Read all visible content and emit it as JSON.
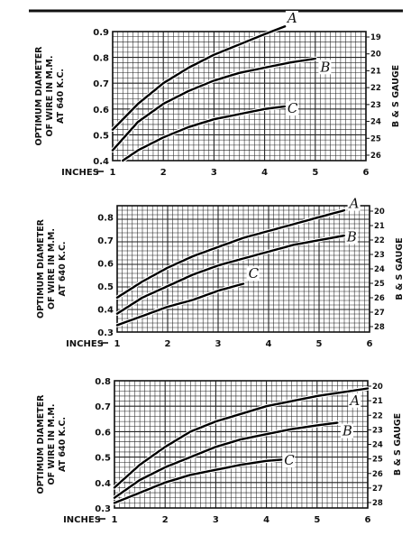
{
  "chart_data": [
    {
      "type": "line",
      "ylabel_lines": [
        "OPTIMUM DIAMETER",
        "OF WIRE IN M.M.",
        "AT 640 K.C."
      ],
      "right_label": "B & S GAUGE",
      "x_axis_label": "INCHES",
      "xlim": [
        1,
        6
      ],
      "ylim": [
        0.4,
        0.9
      ],
      "x_ticks": [
        {
          "value": 1,
          "label": "1"
        },
        {
          "value": 2,
          "label": "2"
        },
        {
          "value": 3,
          "label": "3"
        },
        {
          "value": 4,
          "label": "4"
        },
        {
          "value": 5,
          "label": "5"
        },
        {
          "value": 6,
          "label": "6"
        }
      ],
      "y_ticks": [
        {
          "value": 0.4,
          "label": "0.4"
        },
        {
          "value": 0.5,
          "label": "0.5"
        },
        {
          "value": 0.6,
          "label": "0.6"
        },
        {
          "value": 0.7,
          "label": "0.7"
        },
        {
          "value": 0.8,
          "label": "0.8"
        },
        {
          "value": 0.9,
          "label": "0.9"
        }
      ],
      "right_ticks": [
        "19",
        "20",
        "21",
        "22",
        "23",
        "24",
        "25",
        "26"
      ],
      "grid": true,
      "series": [
        {
          "name": "A",
          "x": [
            1,
            1.5,
            2,
            2.5,
            3,
            3.5,
            4,
            4.4
          ],
          "y": [
            0.52,
            0.62,
            0.7,
            0.76,
            0.81,
            0.85,
            0.89,
            0.92
          ]
        },
        {
          "name": "B",
          "x": [
            1,
            1.5,
            2,
            2.5,
            3,
            3.5,
            4,
            4.5,
            5
          ],
          "y": [
            0.44,
            0.55,
            0.62,
            0.67,
            0.71,
            0.74,
            0.76,
            0.78,
            0.795
          ]
        },
        {
          "name": "C",
          "x": [
            1.2,
            1.5,
            2,
            2.5,
            3,
            3.5,
            4,
            4.4
          ],
          "y": [
            0.4,
            0.44,
            0.49,
            0.53,
            0.56,
            0.58,
            0.6,
            0.61
          ]
        }
      ]
    },
    {
      "type": "line",
      "ylabel_lines": [
        "OPTIMUM DIAMETER",
        "OF WIRE IN M.M.",
        "AT 640 K.C."
      ],
      "right_label": "B & S GAUGE",
      "x_axis_label": "INCHES",
      "xlim": [
        1,
        6
      ],
      "ylim": [
        0.3,
        0.85
      ],
      "x_ticks": [
        {
          "value": 1,
          "label": "1"
        },
        {
          "value": 2,
          "label": "2"
        },
        {
          "value": 3,
          "label": "3"
        },
        {
          "value": 4,
          "label": "4"
        },
        {
          "value": 5,
          "label": "5"
        },
        {
          "value": 6,
          "label": "6"
        }
      ],
      "y_ticks": [
        {
          "value": 0.3,
          "label": "0.3"
        },
        {
          "value": 0.4,
          "label": "0.4"
        },
        {
          "value": 0.5,
          "label": "0.5"
        },
        {
          "value": 0.6,
          "label": "0.6"
        },
        {
          "value": 0.7,
          "label": "0.7"
        },
        {
          "value": 0.8,
          "label": "0.8"
        }
      ],
      "right_ticks": [
        "20",
        "21",
        "22",
        "23",
        "24",
        "25",
        "26",
        "27",
        "28"
      ],
      "grid": true,
      "series": [
        {
          "name": "A",
          "x": [
            1,
            1.5,
            2,
            2.5,
            3,
            3.5,
            4,
            4.5,
            5,
            5.5
          ],
          "y": [
            0.45,
            0.52,
            0.58,
            0.63,
            0.67,
            0.71,
            0.74,
            0.77,
            0.8,
            0.83
          ]
        },
        {
          "name": "B",
          "x": [
            1,
            1.5,
            2,
            2.5,
            3,
            3.5,
            4,
            4.5,
            5,
            5.5
          ],
          "y": [
            0.38,
            0.45,
            0.5,
            0.55,
            0.59,
            0.62,
            0.65,
            0.68,
            0.7,
            0.72
          ]
        },
        {
          "name": "C",
          "x": [
            1,
            1.5,
            2,
            2.5,
            3,
            3.5
          ],
          "y": [
            0.33,
            0.37,
            0.41,
            0.44,
            0.48,
            0.51
          ]
        }
      ]
    },
    {
      "type": "line",
      "ylabel_lines": [
        "OPTIMUM DIAMETER",
        "OF WIRE IN M.M.",
        "AT 640 K.C."
      ],
      "right_label": "B & S GAUGE",
      "x_axis_label": "INCHES",
      "xlim": [
        1,
        6
      ],
      "ylim": [
        0.3,
        0.8
      ],
      "x_ticks": [
        {
          "value": 1,
          "label": "1"
        },
        {
          "value": 2,
          "label": "2"
        },
        {
          "value": 3,
          "label": "3"
        },
        {
          "value": 4,
          "label": "4"
        },
        {
          "value": 5,
          "label": "5"
        },
        {
          "value": 6,
          "label": "6"
        }
      ],
      "y_ticks": [
        {
          "value": 0.3,
          "label": "0.3"
        },
        {
          "value": 0.4,
          "label": "0.4"
        },
        {
          "value": 0.5,
          "label": "0.5"
        },
        {
          "value": 0.6,
          "label": "0.6"
        },
        {
          "value": 0.7,
          "label": "0.7"
        },
        {
          "value": 0.8,
          "label": "0.8"
        }
      ],
      "right_ticks": [
        "20",
        "21",
        "22",
        "23",
        "24",
        "25",
        "26",
        "27",
        "28"
      ],
      "grid": true,
      "series": [
        {
          "name": "A",
          "x": [
            1,
            1.5,
            2,
            2.5,
            3,
            3.5,
            4,
            4.5,
            5,
            5.5,
            6
          ],
          "y": [
            0.38,
            0.47,
            0.54,
            0.6,
            0.64,
            0.67,
            0.7,
            0.72,
            0.74,
            0.755,
            0.77
          ]
        },
        {
          "name": "B",
          "x": [
            1,
            1.5,
            2,
            2.5,
            3,
            3.5,
            4,
            4.5,
            5,
            5.4
          ],
          "y": [
            0.34,
            0.41,
            0.46,
            0.5,
            0.54,
            0.57,
            0.59,
            0.61,
            0.625,
            0.635
          ]
        },
        {
          "name": "C",
          "x": [
            1,
            1.5,
            2,
            2.5,
            3,
            3.5,
            4,
            4.3
          ],
          "y": [
            0.32,
            0.36,
            0.4,
            0.43,
            0.45,
            0.47,
            0.485,
            0.49
          ]
        }
      ]
    }
  ]
}
